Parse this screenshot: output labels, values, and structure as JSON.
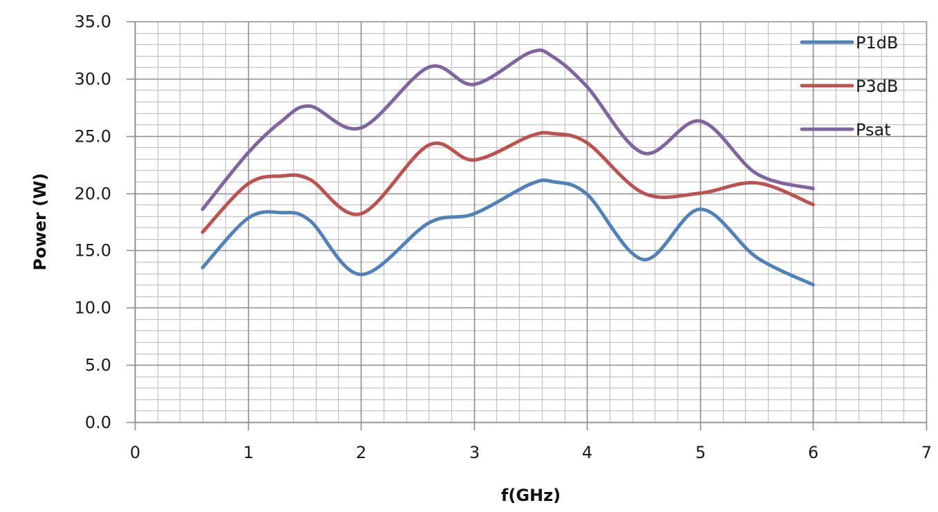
{
  "chart_data": {
    "type": "line",
    "title": "",
    "xlabel": "f(GHz)",
    "ylabel": "Power (W)",
    "xlim": [
      0,
      7
    ],
    "ylim": [
      0,
      35
    ],
    "x_major_step": 1,
    "x_minor_step": 0.2,
    "y_major_step": 5,
    "y_minor_step": 1,
    "x_tick_labels": [
      "0",
      "1",
      "2",
      "3",
      "4",
      "5",
      "6",
      "7"
    ],
    "y_tick_labels": [
      "0.0",
      "5.0",
      "10.0",
      "15.0",
      "20.0",
      "25.0",
      "30.0",
      "35.0"
    ],
    "grid": true,
    "smooth": true,
    "legend_position": "top-right (inside plot)",
    "x": [
      0.6,
      1.0,
      1.3,
      1.55,
      2.0,
      2.6,
      3.0,
      3.5,
      3.7,
      4.0,
      4.5,
      5.0,
      5.5,
      6.0
    ],
    "series": [
      {
        "name": "P1dB",
        "color": "#4F81BD",
        "values": [
          13.5,
          17.8,
          18.3,
          17.6,
          12.9,
          17.4,
          18.2,
          20.8,
          21.0,
          19.9,
          14.2,
          18.6,
          14.4,
          12.0
        ]
      },
      {
        "name": "P3dB",
        "color": "#C0504D",
        "values": [
          16.6,
          20.8,
          21.5,
          21.2,
          18.2,
          24.2,
          22.9,
          25.0,
          25.2,
          24.4,
          20.0,
          20.0,
          20.9,
          19.0
        ]
      },
      {
        "name": "Psat",
        "color": "#8064A2",
        "values": [
          18.6,
          23.5,
          26.3,
          27.6,
          25.7,
          31.0,
          29.5,
          32.3,
          31.9,
          29.3,
          23.5,
          26.3,
          21.7,
          20.4
        ]
      }
    ]
  },
  "legend": {
    "items": [
      {
        "label": "P1dB",
        "color": "#4F81BD"
      },
      {
        "label": "P3dB",
        "color": "#C0504D"
      },
      {
        "label": "Psat",
        "color": "#8064A2"
      }
    ]
  },
  "axes": {
    "x_title": "f(GHz)",
    "y_title": "Power (W)"
  }
}
